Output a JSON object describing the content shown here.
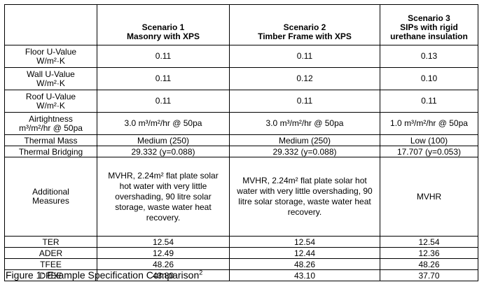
{
  "table": {
    "headers": [
      {
        "line1": "",
        "line2": "",
        "line3": ""
      },
      {
        "line1": "Scenario 1",
        "line2": "Masonry with XPS",
        "line3": ""
      },
      {
        "line1": "Scenario 2",
        "line2": "Timber Frame with XPS",
        "line3": ""
      },
      {
        "line1": "Scenario 3",
        "line2": "SIPs with rigid",
        "line3": "urethane insulation"
      }
    ],
    "rows": [
      {
        "label_line1": "Floor U-Value",
        "label_line2": "W/m²·K",
        "values": [
          "0.11",
          "0.11",
          "0.13"
        ]
      },
      {
        "label_line1": "Wall U-Value",
        "label_line2": "W/m²·K",
        "values": [
          "0.11",
          "0.12",
          "0.10"
        ]
      },
      {
        "label_line1": "Roof U-Value",
        "label_line2": "W/m²·K",
        "values": [
          "0.11",
          "0.11",
          "0.11"
        ]
      },
      {
        "label_line1": "Airtightness",
        "label_line2": "m³/m²/hr @ 50pa",
        "values": [
          "3.0 m³/m²/hr @ 50pa",
          "3.0 m³/m²/hr @ 50pa",
          "1.0 m³/m²/hr @ 50pa"
        ]
      },
      {
        "label_line1": "Thermal Mass",
        "label_line2": "",
        "values": [
          "Medium (250)",
          "Medium (250)",
          "Low (100)"
        ]
      },
      {
        "label_line1": "Thermal Bridging",
        "label_line2": "",
        "values": [
          "29.332 (y=0.088)",
          "29.332 (y=0.088)",
          "17.707 (y=0.053)"
        ]
      },
      {
        "label_line1": "Additional",
        "label_line2": "Measures",
        "values": [
          "MVHR, 2.24m² flat plate solar hot water with very little overshading, 90 litre solar storage, waste water heat recovery.",
          "MVHR, 2.24m² flat plate solar hot water with very little overshading, 90 litre solar storage, waste water heat recovery.",
          "MVHR"
        ]
      },
      {
        "label_line1": "TER",
        "label_line2": "",
        "values": [
          "12.54",
          "12.54",
          "12.54"
        ]
      },
      {
        "label_line1": "ADER",
        "label_line2": "",
        "values": [
          "12.49",
          "12.44",
          "12.36"
        ]
      },
      {
        "label_line1": "TFEE",
        "label_line2": "",
        "values": [
          "48.26",
          "48.26",
          "48.26"
        ]
      },
      {
        "label_line1": "DFEE",
        "label_line2": "",
        "values": [
          "43.80",
          "43.10",
          "37.70"
        ]
      }
    ]
  },
  "caption": {
    "text": "Figure 1: Example Specification Comparison",
    "superscript": "2"
  }
}
